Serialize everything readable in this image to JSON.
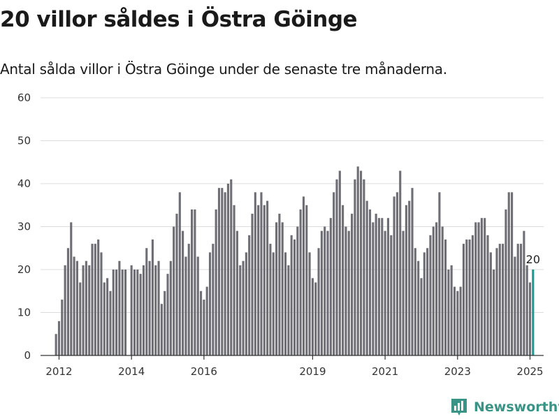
{
  "chart_data": {
    "type": "bar",
    "title": "20 villor såldes i Östra Göinge",
    "subtitle": "Antal sålda villor i Östra Göinge under de senaste tre månaderna.",
    "xlabel": "",
    "ylabel": "",
    "ylim": [
      0,
      60
    ],
    "yticks": [
      "0",
      "10",
      "20",
      "30",
      "40",
      "50",
      "60"
    ],
    "xticks": [
      {
        "label": "2012",
        "x": "2012-01"
      },
      {
        "label": "2014",
        "x": "2014-01"
      },
      {
        "label": "2016",
        "x": "2016-01"
      },
      {
        "label": "2019",
        "x": "2019-01"
      },
      {
        "label": "2021",
        "x": "2021-01"
      },
      {
        "label": "2023",
        "x": "2023-01"
      },
      {
        "label": "2025",
        "x": "2025-01"
      }
    ],
    "grid": true,
    "start": "2011-12",
    "values": [
      5,
      8,
      13,
      21,
      25,
      31,
      23,
      22,
      17,
      21,
      22,
      21,
      26,
      26,
      27,
      24,
      17,
      18,
      15,
      20,
      20,
      22,
      20,
      20,
      0,
      21,
      20,
      20,
      19,
      21,
      25,
      22,
      27,
      21,
      22,
      12,
      15,
      19,
      22,
      30,
      33,
      38,
      29,
      23,
      26,
      34,
      34,
      23,
      15,
      13,
      16,
      24,
      26,
      34,
      39,
      39,
      38,
      40,
      41,
      35,
      29,
      21,
      22,
      24,
      28,
      33,
      38,
      35,
      38,
      35,
      36,
      26,
      24,
      31,
      33,
      31,
      24,
      21,
      28,
      27,
      30,
      34,
      37,
      35,
      24,
      18,
      17,
      25,
      29,
      30,
      29,
      32,
      38,
      41,
      43,
      35,
      30,
      29,
      33,
      41,
      44,
      43,
      41,
      36,
      34,
      31,
      33,
      32,
      32,
      29,
      32,
      28,
      37,
      38,
      43,
      29,
      35,
      36,
      39,
      25,
      22,
      18,
      24,
      25,
      28,
      30,
      31,
      38,
      30,
      27,
      20,
      21,
      16,
      15,
      16,
      26,
      27,
      27,
      28,
      31,
      31,
      32,
      32,
      28,
      24,
      20,
      25,
      26,
      26,
      34,
      38,
      38,
      23,
      26,
      26,
      29,
      21,
      17,
      20
    ],
    "bar_color": "#6e6e75",
    "highlight_color": "#1a9a8c",
    "highlight_label": "20"
  },
  "branding": {
    "name": "Newsworthy",
    "color": "#3a9486"
  }
}
